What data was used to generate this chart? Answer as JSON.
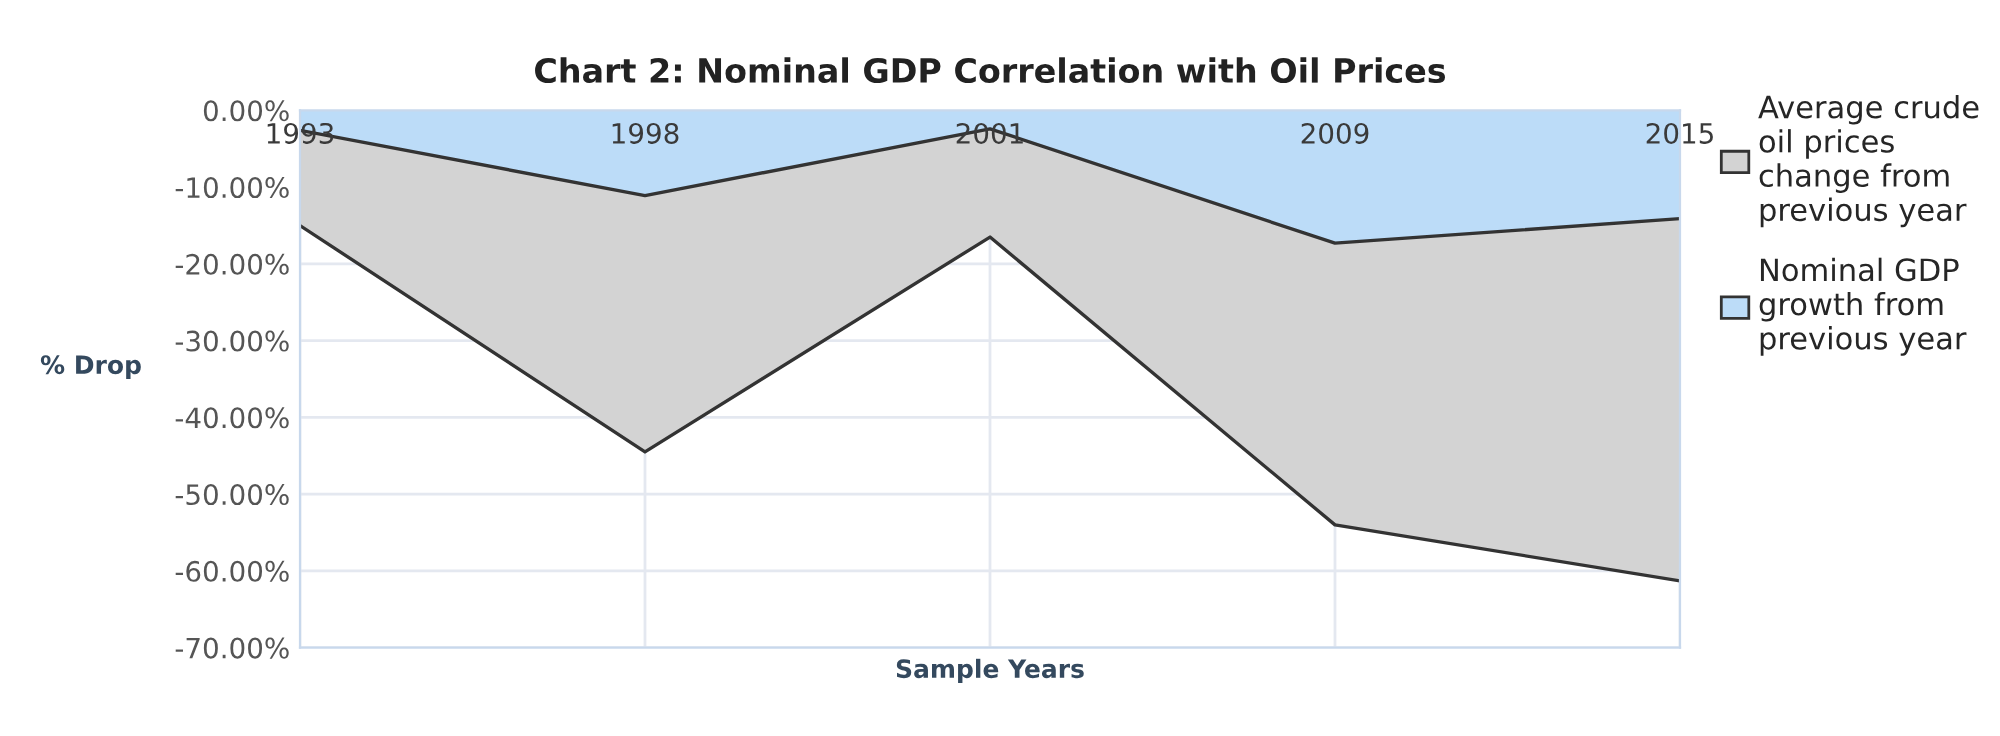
{
  "chart_data": {
    "type": "area",
    "title": "Chart 2: Nominal GDP Correlation with Oil Prices",
    "xlabel": "Sample Years",
    "ylabel": "% Drop",
    "categories": [
      "1993",
      "1998",
      "2001",
      "2009",
      "2015"
    ],
    "series": [
      {
        "name": "Average crude oil prices change from previous year",
        "color": "#d3d3d3",
        "values": [
          -15.0,
          -44.5,
          -16.5,
          -54.0,
          -61.3
        ]
      },
      {
        "name": "Nominal GDP growth from previous year",
        "color": "#bcdcf8",
        "values": [
          -2.6,
          -11.1,
          -2.4,
          -17.3,
          -14.1
        ]
      }
    ],
    "ylim": [
      -70,
      0
    ],
    "yticks": [
      {
        "value": 0,
        "label": "0.00%"
      },
      {
        "value": -10,
        "label": "-10.00%"
      },
      {
        "value": -20,
        "label": "-20.00%"
      },
      {
        "value": -30,
        "label": "-30.00%"
      },
      {
        "value": -40,
        "label": "-40.00%"
      },
      {
        "value": -50,
        "label": "-50.00%"
      },
      {
        "value": -60,
        "label": "-60.00%"
      },
      {
        "value": -70,
        "label": "-70.00%"
      }
    ],
    "grid": true,
    "legend": "right"
  }
}
